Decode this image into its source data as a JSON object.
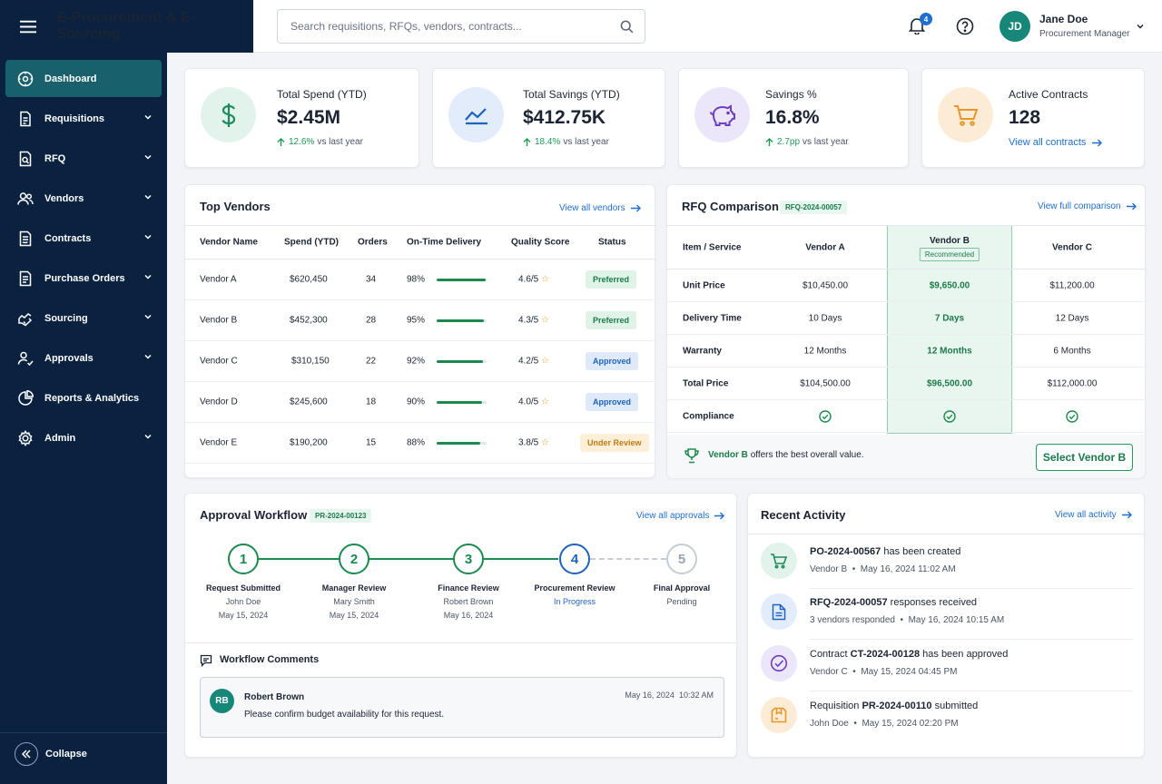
{
  "app": {
    "title": "E-Procurement & E-Sourcing"
  },
  "search": {
    "placeholder": "Search requisitions, RFQs, vendors, contracts..."
  },
  "header": {
    "notifications_count": "4",
    "user_initials": "JD",
    "user_name": "Jane Doe",
    "user_role": "Procurement Manager"
  },
  "sidebar": {
    "items": [
      {
        "label": "Dashboard",
        "icon": "dashboard-icon",
        "active": true
      },
      {
        "label": "Requisitions",
        "icon": "document-icon"
      },
      {
        "label": "RFQ",
        "icon": "rfq-icon"
      },
      {
        "label": "Vendors",
        "icon": "users-icon"
      },
      {
        "label": "Contracts",
        "icon": "contract-icon"
      },
      {
        "label": "Purchase Orders",
        "icon": "purchase-order-icon"
      },
      {
        "label": "Sourcing",
        "icon": "sourcing-icon"
      },
      {
        "label": "Approvals",
        "icon": "approvals-icon"
      },
      {
        "label": "Reports & Analytics",
        "icon": "reports-icon"
      },
      {
        "label": "Admin",
        "icon": "gear-icon"
      }
    ],
    "collapse_label": "Collapse"
  },
  "kpis": [
    {
      "label": "Total Spend (YTD)",
      "value": "$2.45M",
      "change": "12.6%",
      "suffix": "vs last year",
      "color": "#1f9b5a"
    },
    {
      "label": "Total Savings (YTD)",
      "value": "$412.75K",
      "change": "18.4%",
      "suffix": "vs last year",
      "color": "#1e6fd0"
    },
    {
      "label": "Savings %",
      "value": "16.8%",
      "change": "2.7pp",
      "suffix": "vs last year",
      "color": "#6b3fc0"
    },
    {
      "label": "Active Contracts",
      "value": "128",
      "link": "View all contracts",
      "color": "#e8952a"
    }
  ],
  "top_vendors": {
    "title": "Top Vendors",
    "link": "View all vendors",
    "columns": [
      "Vendor Name",
      "Spend (YTD)",
      "Orders",
      "On-Time Delivery",
      "Quality Score",
      "Status"
    ],
    "rows": [
      {
        "name": "Vendor A",
        "spend": "$620,450",
        "orders": "34",
        "otd": "98%",
        "otd_value": 98,
        "quality": "4.6/5",
        "status": "Preferred"
      },
      {
        "name": "Vendor B",
        "spend": "$452,300",
        "orders": "28",
        "otd": "95%",
        "otd_value": 95,
        "quality": "4.3/5",
        "status": "Preferred"
      },
      {
        "name": "Vendor C",
        "spend": "$310,150",
        "orders": "22",
        "otd": "92%",
        "otd_value": 92,
        "quality": "4.2/5",
        "status": "Approved"
      },
      {
        "name": "Vendor D",
        "spend": "$245,600",
        "orders": "18",
        "otd": "90%",
        "otd_value": 90,
        "quality": "4.0/5",
        "status": "Approved"
      },
      {
        "name": "Vendor E",
        "spend": "$190,200",
        "orders": "15",
        "otd": "88%",
        "otd_value": 88,
        "quality": "3.8/5",
        "status": "Under Review"
      }
    ]
  },
  "rfq": {
    "title": "RFQ Comparison",
    "id": "RFQ-2024-00057",
    "link": "View full comparison",
    "columns": [
      "Item / Service",
      "Vendor A",
      "Vendor B",
      "Vendor C"
    ],
    "recommended_label": "Recommended",
    "rows": [
      {
        "label": "Unit Price",
        "a": "$10,450.00",
        "b": "$9,650.00",
        "c": "$11,200.00"
      },
      {
        "label": "Delivery Time",
        "a": "10 Days",
        "b": "7 Days",
        "c": "12 Days"
      },
      {
        "label": "Warranty",
        "a": "12 Months",
        "b": "12 Months",
        "c": "6 Months"
      },
      {
        "label": "Total Price",
        "a": "$104,500.00",
        "b": "$96,500.00",
        "c": "$112,000.00"
      },
      {
        "label": "Compliance",
        "a": "",
        "b": "",
        "c": ""
      }
    ],
    "footer_vendor": "Vendor B",
    "footer_text": "offers the best overall value.",
    "select_button": "Select Vendor B"
  },
  "workflow": {
    "title": "Approval Workflow",
    "id": "PR-2024-00123",
    "link": "View all approvals",
    "steps": [
      {
        "num": "1",
        "label": "Request Submitted",
        "person": "John Doe",
        "date": "May 15, 2024",
        "state": "done"
      },
      {
        "num": "2",
        "label": "Manager Review",
        "person": "Mary Smith",
        "date": "May 15, 2024",
        "state": "done"
      },
      {
        "num": "3",
        "label": "Finance Review",
        "person": "Robert Brown",
        "date": "May 16, 2024",
        "state": "done"
      },
      {
        "num": "4",
        "label": "Procurement Review",
        "person": "In Progress",
        "date": "",
        "state": "current"
      },
      {
        "num": "5",
        "label": "Final Approval",
        "person": "Pending",
        "date": "",
        "state": "pending"
      }
    ],
    "comments_title": "Workflow Comments",
    "comment": {
      "initials": "RB",
      "author": "Robert Brown",
      "date": "May 16, 2024",
      "time": "10:32 AM",
      "text": "Please confirm budget availability for this request."
    }
  },
  "activity": {
    "title": "Recent Activity",
    "link": "View all activity",
    "items": [
      {
        "pre": "",
        "bold": "PO-2024-00567",
        "post": " has been created",
        "meta1": "Vendor B",
        "meta2": "May 16, 2024 11:02 AM",
        "icon": "cart-icon"
      },
      {
        "pre": "",
        "bold": "RFQ-2024-00057",
        "post": " responses received",
        "meta1": "3 vendors responded",
        "meta2": "May 16, 2024 10:15 AM",
        "icon": "document-icon"
      },
      {
        "pre": "Contract ",
        "bold": "CT-2024-00128",
        "post": " has been approved",
        "meta1": "Vendor C",
        "meta2": "May 15, 2024 04:45 PM",
        "icon": "check-circle-icon"
      },
      {
        "pre": "Requisition ",
        "bold": "PR-2024-00110",
        "post": " submitted",
        "meta1": "John Doe",
        "meta2": "May 15, 2024 02:20 PM",
        "icon": "box-icon"
      }
    ]
  }
}
